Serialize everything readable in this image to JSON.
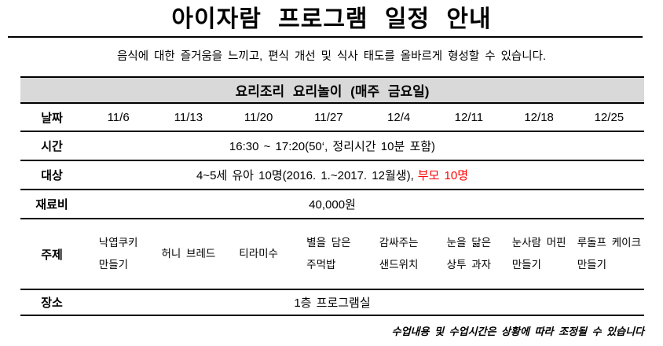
{
  "page": {
    "title": "아이자람 프로그램 일정 안내",
    "subtitle": "음식에 대한 즐거움을 느끼고, 편식 개선 및 식사 태도를 올바르게 형성할 수 있습니다.",
    "footer_note": "수업내용 및 수업시간은 상황에 따라 조정될 수 있습니다"
  },
  "table": {
    "section_header": "요리조리 요리놀이 (매주 금요일)",
    "rows": {
      "dates": {
        "label": "날짜",
        "values": [
          "11/6",
          "11/13",
          "11/20",
          "11/27",
          "12/4",
          "12/11",
          "12/18",
          "12/25"
        ]
      },
      "time": {
        "label": "시간",
        "value": "16:30 ~ 17:20(50‘, 정리시간 10분 포함)"
      },
      "target": {
        "label": "대상",
        "value": "4~5세 유아 10명(2016. 1.~2017. 12월생),",
        "value_red": "부모 10명"
      },
      "fee": {
        "label": "재료비",
        "value": "40,000원"
      },
      "topics": {
        "label": "주제",
        "values": [
          [
            "낙엽쿠키",
            "만들기"
          ],
          [
            "허니 브레드"
          ],
          [
            "티라미수"
          ],
          [
            "별을 담은",
            "주먹밥"
          ],
          [
            "감싸주는",
            "샌드위치"
          ],
          [
            "눈을 닮은",
            "상투 과자"
          ],
          [
            "눈사람 머핀",
            "만들기"
          ],
          [
            "루돌프 케이크",
            "만들기"
          ]
        ]
      },
      "place": {
        "label": "장소",
        "value": "1층 프로그램실"
      }
    }
  },
  "colors": {
    "text": "#000000",
    "accent_red": "#ff0000",
    "section_header_bg": "#d9d9d9",
    "rule": "#000000"
  }
}
